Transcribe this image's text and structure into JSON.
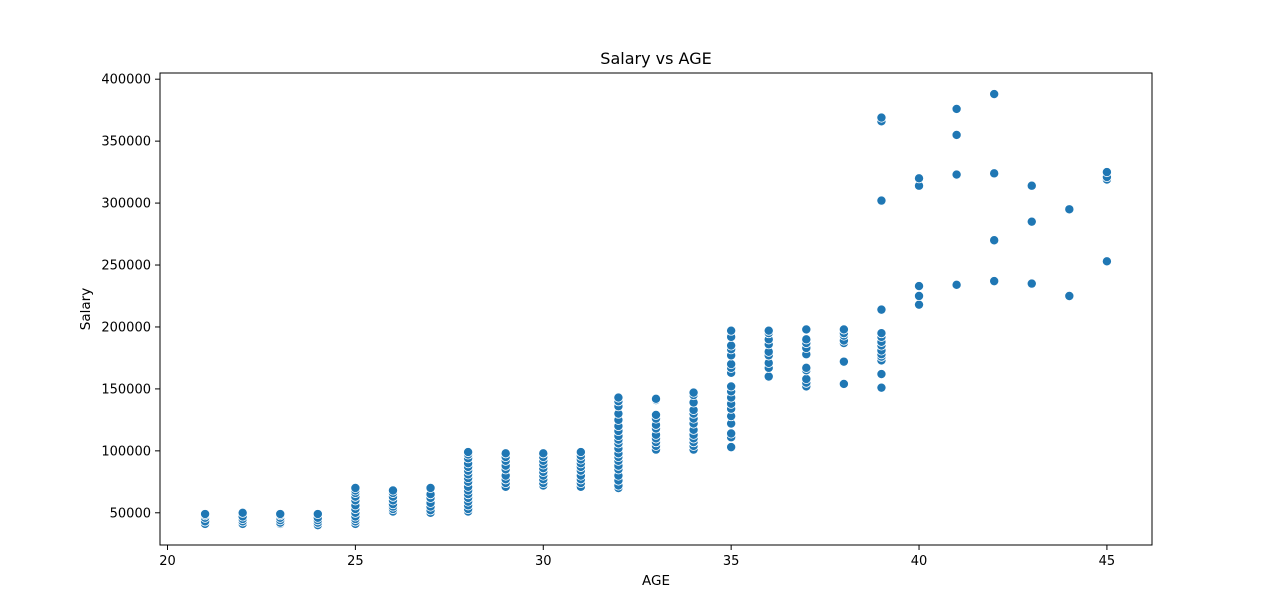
{
  "chart_data": {
    "type": "scatter",
    "title": "Salary vs AGE",
    "xlabel": "AGE",
    "ylabel": "Salary",
    "xlim": [
      19.8,
      46.2
    ],
    "ylim": [
      24000,
      405000
    ],
    "xticks": [
      20,
      25,
      30,
      35,
      40,
      45
    ],
    "yticks": [
      50000,
      100000,
      150000,
      200000,
      250000,
      300000,
      350000,
      400000
    ],
    "grid": false,
    "legend": "none",
    "marker_color": "#1f77b4",
    "marker_edge_color": "#ffffff",
    "series": [
      {
        "name": "Salary",
        "points": [
          [
            21,
            41000
          ],
          [
            21,
            43000
          ],
          [
            21,
            46000
          ],
          [
            21,
            48000
          ],
          [
            21,
            49000
          ],
          [
            22,
            41000
          ],
          [
            22,
            43000
          ],
          [
            22,
            45000
          ],
          [
            22,
            47000
          ],
          [
            22,
            50000
          ],
          [
            23,
            41000
          ],
          [
            23,
            42000
          ],
          [
            23,
            44000
          ],
          [
            23,
            46000
          ],
          [
            23,
            48000
          ],
          [
            23,
            49000
          ],
          [
            24,
            40000
          ],
          [
            24,
            42000
          ],
          [
            24,
            44000
          ],
          [
            24,
            46000
          ],
          [
            24,
            49000
          ],
          [
            25,
            41000
          ],
          [
            25,
            43000
          ],
          [
            25,
            45000
          ],
          [
            25,
            47000
          ],
          [
            25,
            50000
          ],
          [
            25,
            53000
          ],
          [
            25,
            56000
          ],
          [
            25,
            60000
          ],
          [
            25,
            63000
          ],
          [
            25,
            66000
          ],
          [
            25,
            68000
          ],
          [
            25,
            70000
          ],
          [
            26,
            51000
          ],
          [
            26,
            53000
          ],
          [
            26,
            55000
          ],
          [
            26,
            57000
          ],
          [
            26,
            60000
          ],
          [
            26,
            63000
          ],
          [
            26,
            66000
          ],
          [
            26,
            68000
          ],
          [
            27,
            50000
          ],
          [
            27,
            52000
          ],
          [
            27,
            55000
          ],
          [
            27,
            58000
          ],
          [
            27,
            62000
          ],
          [
            27,
            65000
          ],
          [
            27,
            70000
          ],
          [
            28,
            51000
          ],
          [
            28,
            53000
          ],
          [
            28,
            56000
          ],
          [
            28,
            59000
          ],
          [
            28,
            62000
          ],
          [
            28,
            65000
          ],
          [
            28,
            68000
          ],
          [
            28,
            71000
          ],
          [
            28,
            75000
          ],
          [
            28,
            78000
          ],
          [
            28,
            81000
          ],
          [
            28,
            84000
          ],
          [
            28,
            87000
          ],
          [
            28,
            90000
          ],
          [
            28,
            94000
          ],
          [
            28,
            97000
          ],
          [
            28,
            99000
          ],
          [
            29,
            71000
          ],
          [
            29,
            74000
          ],
          [
            29,
            77000
          ],
          [
            29,
            80000
          ],
          [
            29,
            85000
          ],
          [
            29,
            88000
          ],
          [
            29,
            92000
          ],
          [
            29,
            95000
          ],
          [
            29,
            98000
          ],
          [
            30,
            72000
          ],
          [
            30,
            74000
          ],
          [
            30,
            77000
          ],
          [
            30,
            80000
          ],
          [
            30,
            83000
          ],
          [
            30,
            86000
          ],
          [
            30,
            89000
          ],
          [
            30,
            92000
          ],
          [
            30,
            95000
          ],
          [
            30,
            98000
          ],
          [
            31,
            71000
          ],
          [
            31,
            74000
          ],
          [
            31,
            77000
          ],
          [
            31,
            80000
          ],
          [
            31,
            84000
          ],
          [
            31,
            87000
          ],
          [
            31,
            90000
          ],
          [
            31,
            93000
          ],
          [
            31,
            96000
          ],
          [
            31,
            99000
          ],
          [
            32,
            70000
          ],
          [
            32,
            72000
          ],
          [
            32,
            76000
          ],
          [
            32,
            80000
          ],
          [
            32,
            85000
          ],
          [
            32,
            88000
          ],
          [
            32,
            92000
          ],
          [
            32,
            95000
          ],
          [
            32,
            98000
          ],
          [
            32,
            102000
          ],
          [
            32,
            106000
          ],
          [
            32,
            109000
          ],
          [
            32,
            112000
          ],
          [
            32,
            116000
          ],
          [
            32,
            120000
          ],
          [
            32,
            125000
          ],
          [
            32,
            130000
          ],
          [
            32,
            136000
          ],
          [
            32,
            140000
          ],
          [
            32,
            143000
          ],
          [
            33,
            101000
          ],
          [
            33,
            104000
          ],
          [
            33,
            107000
          ],
          [
            33,
            110000
          ],
          [
            33,
            113000
          ],
          [
            33,
            118000
          ],
          [
            33,
            121000
          ],
          [
            33,
            126000
          ],
          [
            33,
            129000
          ],
          [
            33,
            141000
          ],
          [
            33,
            142000
          ],
          [
            34,
            101000
          ],
          [
            34,
            104000
          ],
          [
            34,
            107000
          ],
          [
            34,
            110000
          ],
          [
            34,
            113000
          ],
          [
            34,
            117000
          ],
          [
            34,
            122000
          ],
          [
            34,
            126000
          ],
          [
            34,
            130000
          ],
          [
            34,
            133000
          ],
          [
            34,
            139000
          ],
          [
            34,
            145000
          ],
          [
            34,
            147000
          ],
          [
            35,
            103000
          ],
          [
            35,
            111000
          ],
          [
            35,
            114000
          ],
          [
            35,
            122000
          ],
          [
            35,
            128000
          ],
          [
            35,
            134000
          ],
          [
            35,
            138000
          ],
          [
            35,
            143000
          ],
          [
            35,
            148000
          ],
          [
            35,
            152000
          ],
          [
            35,
            163000
          ],
          [
            35,
            167000
          ],
          [
            35,
            170000
          ],
          [
            35,
            177000
          ],
          [
            35,
            182000
          ],
          [
            35,
            185000
          ],
          [
            35,
            192000
          ],
          [
            35,
            197000
          ],
          [
            36,
            160000
          ],
          [
            36,
            167000
          ],
          [
            36,
            171000
          ],
          [
            36,
            177000
          ],
          [
            36,
            180000
          ],
          [
            36,
            186000
          ],
          [
            36,
            190000
          ],
          [
            36,
            195000
          ],
          [
            36,
            197000
          ],
          [
            37,
            152000
          ],
          [
            37,
            155000
          ],
          [
            37,
            158000
          ],
          [
            37,
            165000
          ],
          [
            37,
            167000
          ],
          [
            37,
            178000
          ],
          [
            37,
            183000
          ],
          [
            37,
            187000
          ],
          [
            37,
            190000
          ],
          [
            37,
            198000
          ],
          [
            38,
            154000
          ],
          [
            38,
            172000
          ],
          [
            38,
            187000
          ],
          [
            38,
            189000
          ],
          [
            38,
            193000
          ],
          [
            38,
            195000
          ],
          [
            38,
            198000
          ],
          [
            39,
            151000
          ],
          [
            39,
            162000
          ],
          [
            39,
            173000
          ],
          [
            39,
            176000
          ],
          [
            39,
            178000
          ],
          [
            39,
            181000
          ],
          [
            39,
            185000
          ],
          [
            39,
            188000
          ],
          [
            39,
            192000
          ],
          [
            39,
            195000
          ],
          [
            39,
            214000
          ],
          [
            39,
            302000
          ],
          [
            39,
            366000
          ],
          [
            39,
            369000
          ],
          [
            40,
            218000
          ],
          [
            40,
            225000
          ],
          [
            40,
            233000
          ],
          [
            40,
            314000
          ],
          [
            40,
            320000
          ],
          [
            41,
            234000
          ],
          [
            41,
            323000
          ],
          [
            41,
            355000
          ],
          [
            41,
            376000
          ],
          [
            42,
            237000
          ],
          [
            42,
            270000
          ],
          [
            42,
            324000
          ],
          [
            42,
            388000
          ],
          [
            43,
            235000
          ],
          [
            43,
            285000
          ],
          [
            43,
            314000
          ],
          [
            44,
            225000
          ],
          [
            44,
            295000
          ],
          [
            45,
            253000
          ],
          [
            45,
            319000
          ],
          [
            45,
            321000
          ],
          [
            45,
            325000
          ]
        ]
      }
    ]
  }
}
